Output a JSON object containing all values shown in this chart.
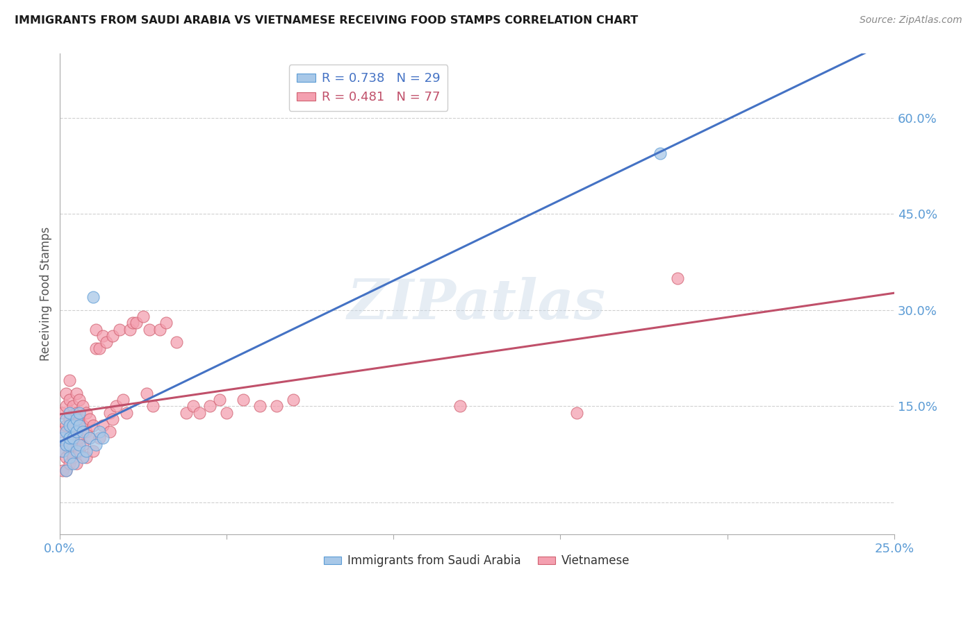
{
  "title": "IMMIGRANTS FROM SAUDI ARABIA VS VIETNAMESE RECEIVING FOOD STAMPS CORRELATION CHART",
  "source": "Source: ZipAtlas.com",
  "ylabel": "Receiving Food Stamps",
  "xlim": [
    0.0,
    0.25
  ],
  "ylim": [
    -0.05,
    0.7
  ],
  "xticks": [
    0.0,
    0.05,
    0.1,
    0.15,
    0.2,
    0.25
  ],
  "ytick_vals": [
    0.0,
    0.15,
    0.3,
    0.45,
    0.6
  ],
  "ytick_labels_right": [
    "",
    "15.0%",
    "30.0%",
    "45.0%",
    "60.0%"
  ],
  "saudi_color": "#a8c8e8",
  "saudi_edge": "#5b9bd5",
  "saudi_line_color": "#4472c4",
  "vietnamese_color": "#f4a0b0",
  "vietnamese_edge": "#d06070",
  "vietnamese_line_color": "#c0506a",
  "saudi_R": 0.738,
  "saudi_N": 29,
  "vietnamese_R": 0.481,
  "vietnamese_N": 77,
  "watermark": "ZIPatlas",
  "background_color": "#ffffff",
  "grid_color": "#d0d0d0",
  "saudi_scatter_x": [
    0.001,
    0.001,
    0.002,
    0.002,
    0.002,
    0.002,
    0.003,
    0.003,
    0.003,
    0.003,
    0.003,
    0.004,
    0.004,
    0.004,
    0.005,
    0.005,
    0.005,
    0.006,
    0.006,
    0.006,
    0.007,
    0.007,
    0.008,
    0.009,
    0.01,
    0.011,
    0.012,
    0.013,
    0.18
  ],
  "saudi_scatter_y": [
    0.08,
    0.1,
    0.05,
    0.09,
    0.11,
    0.13,
    0.07,
    0.09,
    0.1,
    0.12,
    0.14,
    0.06,
    0.1,
    0.12,
    0.08,
    0.11,
    0.13,
    0.09,
    0.12,
    0.14,
    0.07,
    0.11,
    0.08,
    0.1,
    0.32,
    0.09,
    0.11,
    0.1,
    0.545
  ],
  "vietnamese_scatter_x": [
    0.001,
    0.001,
    0.001,
    0.001,
    0.002,
    0.002,
    0.002,
    0.002,
    0.002,
    0.002,
    0.003,
    0.003,
    0.003,
    0.003,
    0.003,
    0.003,
    0.004,
    0.004,
    0.004,
    0.004,
    0.005,
    0.005,
    0.005,
    0.005,
    0.005,
    0.006,
    0.006,
    0.006,
    0.006,
    0.007,
    0.007,
    0.007,
    0.008,
    0.008,
    0.008,
    0.009,
    0.009,
    0.01,
    0.01,
    0.011,
    0.011,
    0.012,
    0.012,
    0.013,
    0.013,
    0.014,
    0.015,
    0.015,
    0.016,
    0.016,
    0.017,
    0.018,
    0.019,
    0.02,
    0.021,
    0.022,
    0.023,
    0.025,
    0.026,
    0.027,
    0.028,
    0.03,
    0.032,
    0.035,
    0.038,
    0.04,
    0.042,
    0.045,
    0.048,
    0.05,
    0.055,
    0.06,
    0.065,
    0.07,
    0.12,
    0.155,
    0.185
  ],
  "vietnamese_scatter_y": [
    0.05,
    0.08,
    0.11,
    0.14,
    0.05,
    0.07,
    0.09,
    0.12,
    0.15,
    0.17,
    0.06,
    0.08,
    0.1,
    0.13,
    0.16,
    0.19,
    0.07,
    0.09,
    0.12,
    0.15,
    0.06,
    0.09,
    0.11,
    0.14,
    0.17,
    0.08,
    0.1,
    0.13,
    0.16,
    0.09,
    0.12,
    0.15,
    0.07,
    0.11,
    0.14,
    0.1,
    0.13,
    0.08,
    0.12,
    0.24,
    0.27,
    0.1,
    0.24,
    0.12,
    0.26,
    0.25,
    0.11,
    0.14,
    0.13,
    0.26,
    0.15,
    0.27,
    0.16,
    0.14,
    0.27,
    0.28,
    0.28,
    0.29,
    0.17,
    0.27,
    0.15,
    0.27,
    0.28,
    0.25,
    0.14,
    0.15,
    0.14,
    0.15,
    0.16,
    0.14,
    0.16,
    0.15,
    0.15,
    0.16,
    0.15,
    0.14,
    0.35
  ]
}
